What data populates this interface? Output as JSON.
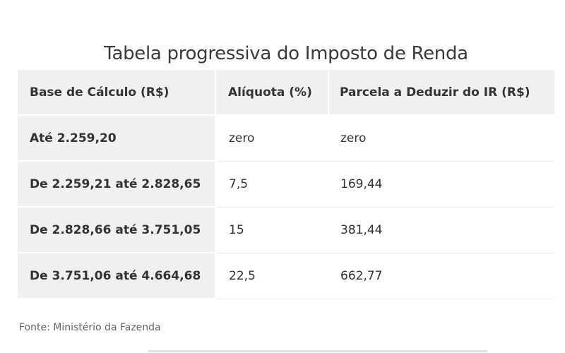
{
  "title": "Tabela progressiva do Imposto de Renda",
  "table": {
    "headers": [
      "Base de Cálculo (R$)",
      "Alíquota (%)",
      "Parcela a Deduzir do IR (R$)"
    ],
    "rows": [
      {
        "base": "Até 2.259,20",
        "aliquota": "zero",
        "parcela": "zero"
      },
      {
        "base": "De 2.259,21 até 2.828,65",
        "aliquota": "7,5",
        "parcela": "169,44"
      },
      {
        "base": "De 2.828,66 até 3.751,05",
        "aliquota": "15",
        "parcela": "381,44"
      },
      {
        "base": "De 3.751,06 até 4.664,68",
        "aliquota": "22,5",
        "parcela": "662,77"
      }
    ]
  },
  "source": "Fonte: Ministério da Fazenda",
  "colors": {
    "shaded_cell": "#f0f0f0",
    "text": "#333333",
    "source_text": "#666666"
  }
}
